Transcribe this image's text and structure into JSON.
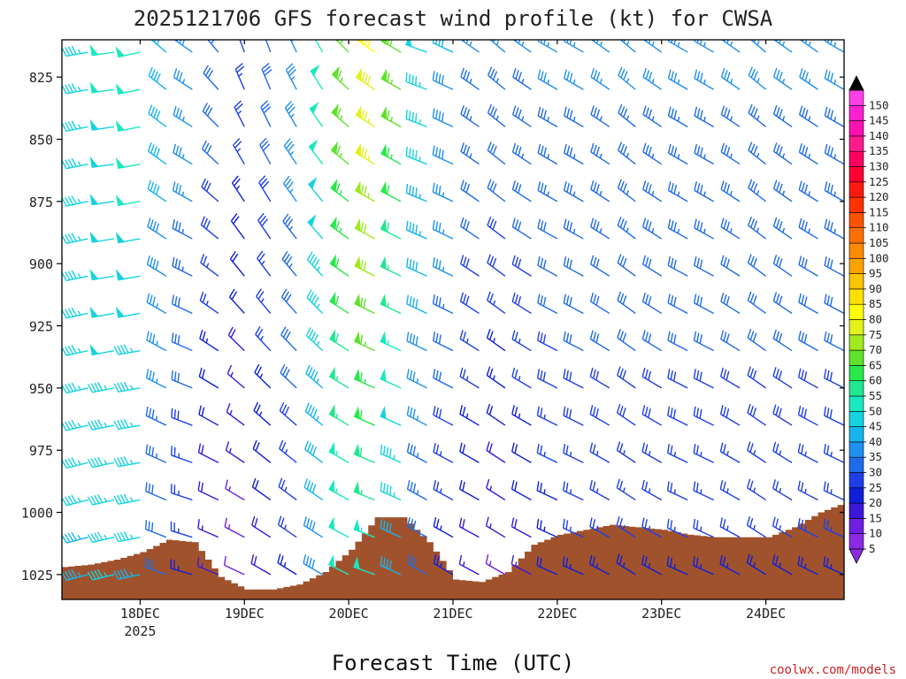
{
  "chart_data": {
    "type": "wind-barb-profile",
    "title": "2025121706 GFS forecast wind profile (kt) for CWSA",
    "xlabel": "Forecast Time (UTC)",
    "credit": "coolwx.com/models",
    "x_ticks": [
      {
        "label": "18DEC",
        "sub": "2025",
        "hour": 18
      },
      {
        "label": "19DEC",
        "sub": "",
        "hour": 42
      },
      {
        "label": "20DEC",
        "sub": "",
        "hour": 66
      },
      {
        "label": "21DEC",
        "sub": "",
        "hour": 90
      },
      {
        "label": "22DEC",
        "sub": "",
        "hour": 114
      },
      {
        "label": "23DEC",
        "sub": "",
        "hour": 138
      },
      {
        "label": "24DEC",
        "sub": "",
        "hour": 162
      }
    ],
    "xlim_hours": [
      0,
      180
    ],
    "y_ticks": [
      825,
      850,
      875,
      900,
      925,
      950,
      975,
      1000,
      1025
    ],
    "ylim_hpa": [
      810,
      1035
    ],
    "levels_hpa": [
      815,
      830,
      845,
      860,
      875,
      890,
      905,
      920,
      935,
      950,
      965,
      980,
      995,
      1010,
      1025
    ],
    "speed_colorbar": [
      5,
      10,
      15,
      20,
      25,
      30,
      35,
      40,
      45,
      50,
      55,
      60,
      65,
      70,
      75,
      80,
      85,
      90,
      95,
      100,
      105,
      110,
      115,
      120,
      125,
      130,
      135,
      140,
      145,
      150
    ],
    "surface_pressure": {
      "hours": [
        0,
        6,
        12,
        18,
        24,
        30,
        36,
        42,
        48,
        54,
        60,
        66,
        72,
        78,
        84,
        90,
        96,
        102,
        108,
        114,
        120,
        126,
        132,
        138,
        144,
        150,
        156,
        162,
        168,
        174,
        180
      ],
      "hpa": [
        1022,
        1021,
        1019,
        1016,
        1011,
        1012,
        1026,
        1031,
        1031,
        1029,
        1024,
        1015,
        1002,
        1002,
        1012,
        1027,
        1028,
        1024,
        1013,
        1009,
        1007,
        1005,
        1006,
        1007,
        1009,
        1010,
        1010,
        1010,
        1006,
        1000,
        996
      ]
    },
    "wind_sample_hours": [
      0,
      6,
      12,
      18,
      24,
      30,
      36,
      42,
      48,
      54,
      60,
      66,
      72,
      78,
      84,
      90,
      96,
      102,
      108,
      114,
      120,
      126,
      132,
      138,
      144,
      150,
      156,
      162,
      168,
      174,
      180
    ],
    "wind_dir_deg": [
      [
        255,
        260,
        262,
        258,
        310,
        305,
        320,
        340,
        340,
        335,
        330,
        315,
        305,
        300,
        290,
        295,
        305,
        310,
        305,
        300,
        300,
        305,
        310,
        305,
        300,
        300,
        305,
        310,
        305,
        305,
        300
      ],
      [
        255,
        258,
        262,
        260,
        305,
        300,
        312,
        328,
        330,
        325,
        322,
        308,
        300,
        298,
        292,
        295,
        305,
        308,
        303,
        300,
        300,
        303,
        308,
        303,
        300,
        300,
        303,
        308,
        305,
        302,
        300
      ],
      [
        255,
        258,
        260,
        260,
        300,
        295,
        305,
        318,
        320,
        318,
        315,
        303,
        296,
        295,
        295,
        296,
        303,
        306,
        302,
        298,
        298,
        302,
        306,
        302,
        298,
        298,
        302,
        306,
        304,
        300,
        298
      ],
      [
        255,
        256,
        258,
        260,
        295,
        290,
        298,
        305,
        310,
        310,
        308,
        300,
        293,
        294,
        298,
        298,
        300,
        304,
        300,
        296,
        296,
        300,
        304,
        300,
        296,
        296,
        300,
        304,
        302,
        298,
        296
      ],
      [
        255,
        255,
        256,
        258,
        290,
        286,
        292,
        295,
        300,
        302,
        300,
        297,
        290,
        294,
        300,
        300,
        298,
        300,
        298,
        294,
        294,
        298,
        302,
        298,
        294,
        294,
        298,
        302,
        300,
        296,
        294
      ]
    ],
    "wind_speed_kt": [
      [
        47,
        47,
        50,
        51,
        42,
        38,
        33,
        28,
        31,
        38,
        52,
        68,
        80,
        68,
        48,
        40,
        35,
        35,
        35,
        35,
        35,
        35,
        35,
        35,
        35,
        35,
        35,
        35,
        35,
        35,
        35
      ],
      [
        46,
        47,
        49,
        50,
        40,
        36,
        30,
        24,
        30,
        36,
        50,
        65,
        75,
        62,
        45,
        38,
        33,
        32,
        33,
        34,
        34,
        34,
        34,
        34,
        34,
        34,
        34,
        34,
        34,
        34,
        34
      ],
      [
        46,
        46,
        48,
        48,
        37,
        32,
        25,
        20,
        26,
        32,
        46,
        60,
        68,
        55,
        40,
        34,
        28,
        26,
        28,
        30,
        31,
        31,
        31,
        31,
        31,
        31,
        31,
        31,
        31,
        31,
        31
      ],
      [
        45,
        45,
        47,
        46,
        34,
        28,
        20,
        15,
        22,
        28,
        42,
        55,
        60,
        48,
        35,
        28,
        22,
        20,
        22,
        26,
        28,
        28,
        28,
        28,
        28,
        28,
        28,
        28,
        28,
        28,
        28
      ],
      [
        44,
        44,
        45,
        44,
        30,
        24,
        16,
        12,
        18,
        24,
        38,
        50,
        52,
        40,
        30,
        23,
        17,
        14,
        17,
        22,
        24,
        24,
        24,
        24,
        24,
        24,
        24,
        24,
        24,
        24,
        24
      ]
    ]
  }
}
